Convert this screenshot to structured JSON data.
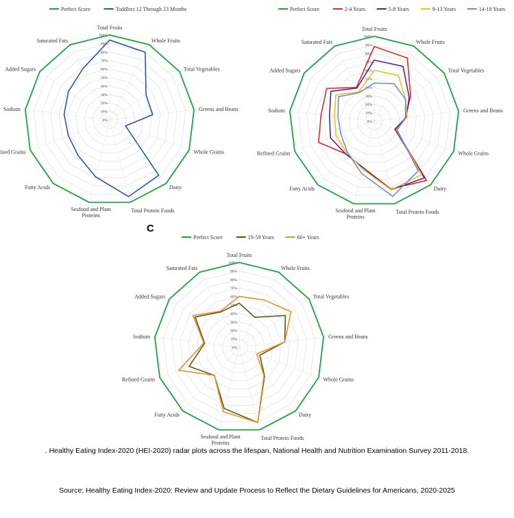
{
  "caption": ". Healthy Eating Index-2020 (HEI-2020) radar plots across the lifespan, National Health and Nutrition Examination Survey 2011-2018.",
  "source": "Source; Healthy Eating Index-2020: Review and Update Process to Reflect the Dietary Guidelines for Americans, 2020-2025",
  "chart_data": [
    {
      "type": "radar",
      "panel": "",
      "categories": [
        "Total Fruits",
        "Whole Fruits",
        "Total Vegetables",
        "Greens and Beans",
        "Whole Grains",
        "Dairy",
        "Total Protein Foods",
        "Seafood and Plant Proteins",
        "Fatty Acids",
        "Refined Grains",
        "Sodium",
        "Added Sugars",
        "Saturated Fats"
      ],
      "ticks": [
        "0%",
        "10%",
        "20%",
        "30%",
        "40%",
        "50%",
        "60%",
        "70%",
        "80%",
        "90%",
        "100%"
      ],
      "rlim": [
        0,
        100
      ],
      "series": [
        {
          "name": "Perfect Score",
          "color": "#1aa33a",
          "values": [
            100,
            100,
            100,
            100,
            100,
            100,
            100,
            100,
            100,
            100,
            100,
            100,
            100
          ]
        },
        {
          "name": "Toddlers 12 Through 23 Months",
          "color": "#2e52b5",
          "values": [
            94,
            90,
            52,
            51,
            20,
            87,
            93,
            69,
            56,
            52,
            54,
            59,
            68
          ]
        }
      ]
    },
    {
      "type": "radar",
      "panel": "",
      "categories": [
        "Total Fruits",
        "Whole Fruits",
        "Total Vegetables",
        "Greens and Beans",
        "Whole Grains",
        "Dairy",
        "Total Protein Foods",
        "Seafood and Plant Proteins",
        "Fatty Acids",
        "Refined Grains",
        "Sodium",
        "Added Sugars",
        "Saturated Fats"
      ],
      "ticks": [
        "0%",
        "10%",
        "20%",
        "30%",
        "40%",
        "50%",
        "60%",
        "70%",
        "80%",
        "90%",
        "100%"
      ],
      "rlim": [
        0,
        100
      ],
      "series": [
        {
          "name": "Perfect Score",
          "color": "#1aa33a",
          "values": [
            100,
            100,
            100,
            100,
            100,
            100,
            100,
            100,
            100,
            100,
            100,
            100,
            100
          ]
        },
        {
          "name": "2-4 Years",
          "color": "#e2262b",
          "values": [
            88,
            84,
            52,
            37,
            27,
            93,
            82,
            56,
            51,
            70,
            63,
            68,
            45
          ]
        },
        {
          "name": "5-8 Years",
          "color": "#5a1f96",
          "values": [
            72,
            73,
            50,
            38,
            26,
            89,
            83,
            56,
            51,
            55,
            53,
            62,
            44
          ]
        },
        {
          "name": "9-13 Years",
          "color": "#e9c21c",
          "values": [
            60,
            61,
            45,
            39,
            28,
            84,
            83,
            58,
            49,
            48,
            47,
            55,
            39
          ]
        },
        {
          "name": "14-18 Years",
          "color": "#6f8fc9",
          "values": [
            45,
            50,
            45,
            37,
            29,
            78,
            91,
            63,
            48,
            42,
            43,
            51,
            38
          ]
        }
      ]
    },
    {
      "type": "radar",
      "panel": "C",
      "categories": [
        "Total Fruits",
        "Whole Fruits",
        "Total Vegetables",
        "Greens and Beans",
        "Whole Grains",
        "Dairy",
        "Total Protein Foods",
        "Seafood and Plant Proteins",
        "Fatty Acids",
        "Refined Grains",
        "Sodium",
        "Added Sugars",
        "Saturated Fats"
      ],
      "ticks": [
        "0%",
        "10%",
        "20%",
        "30%",
        "40%",
        "50%",
        "60%",
        "70%",
        "80%",
        "90%",
        "100%"
      ],
      "rlim": [
        0,
        100
      ],
      "series": [
        {
          "name": "Perfect Score",
          "color": "#1aa33a",
          "values": [
            100,
            100,
            100,
            100,
            100,
            100,
            100,
            100,
            100,
            100,
            100,
            100,
            100
          ]
        },
        {
          "name": "19-59 Years",
          "color": "#5c5a12",
          "values": [
            52,
            40,
            66,
            54,
            26,
            45,
            91,
            74,
            44,
            63,
            41,
            63,
            47
          ]
        },
        {
          "name": "60+ Years",
          "color": "#e8902a",
          "values": [
            60,
            63,
            74,
            54,
            22,
            44,
            91,
            78,
            44,
            76,
            42,
            66,
            48
          ]
        }
      ]
    }
  ]
}
